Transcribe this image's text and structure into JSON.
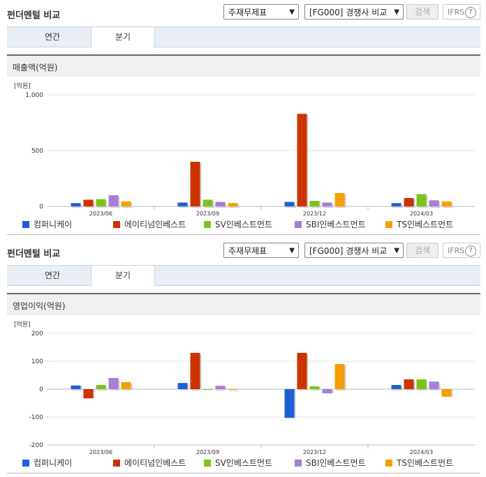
{
  "header": {
    "title": "펀더멘털 비교",
    "statement_select": "주재무제표",
    "compare_select": "[FG000] 경쟁사 비교",
    "search_label": "검색",
    "ifrs_label": "IFRS",
    "help_glyph": "?"
  },
  "tabs": [
    {
      "label": "연간"
    },
    {
      "label": "분기",
      "active": true
    }
  ],
  "legend": [
    {
      "name": "컴퍼니케이",
      "color": "#1f5fd6"
    },
    {
      "name": "에이티넘인베스트",
      "color": "#cc3300"
    },
    {
      "name": "SV인베스트먼트",
      "color": "#7cc21c"
    },
    {
      "name": "SBI인베스트먼트",
      "color": "#a67ed8"
    },
    {
      "name": "TS인베스트먼트",
      "color": "#f5a000"
    }
  ],
  "chart_data": [
    {
      "type": "bar",
      "title": "매출액(억원)",
      "unit": "[억원]",
      "categories": [
        "2023/06",
        "2023/09",
        "2023/12",
        "2024/03"
      ],
      "ylim": [
        0,
        1000
      ],
      "yticks": [
        "0",
        "500",
        "1,000"
      ],
      "series": [
        {
          "name": "컴퍼니케이",
          "values": [
            30,
            35,
            40,
            30
          ]
        },
        {
          "name": "에이티넘인베스트",
          "values": [
            60,
            400,
            830,
            75
          ]
        },
        {
          "name": "SV인베스트먼트",
          "values": [
            65,
            60,
            50,
            110
          ]
        },
        {
          "name": "SBI인베스트먼트",
          "values": [
            100,
            40,
            35,
            55
          ]
        },
        {
          "name": "TS인베스트먼트",
          "values": [
            45,
            30,
            120,
            45
          ]
        }
      ]
    },
    {
      "type": "bar",
      "title": "영업이익(억원)",
      "unit": "[억원]",
      "categories": [
        "2023/06",
        "2023/09",
        "2023/12",
        "2024/03"
      ],
      "ylim": [
        -200,
        200
      ],
      "yticks": [
        "-200",
        "-100",
        "0",
        "100",
        "200"
      ],
      "series": [
        {
          "name": "컴퍼니케이",
          "values": [
            13,
            22,
            -103,
            15
          ]
        },
        {
          "name": "에이티넘인베스트",
          "values": [
            -33,
            130,
            130,
            35
          ]
        },
        {
          "name": "SV인베스트먼트",
          "values": [
            15,
            -2,
            10,
            35
          ]
        },
        {
          "name": "SBI인베스트먼트",
          "values": [
            40,
            12,
            -15,
            27
          ]
        },
        {
          "name": "TS인베스트먼트",
          "values": [
            25,
            0,
            90,
            -27
          ]
        }
      ]
    }
  ]
}
